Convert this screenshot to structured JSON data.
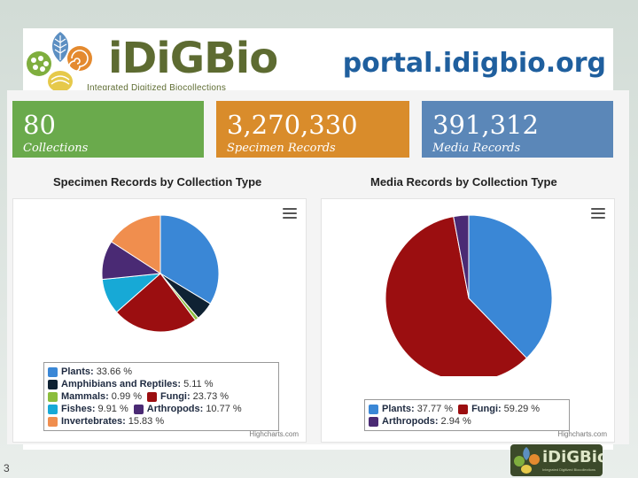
{
  "header": {
    "logo_text": "iDiGBio",
    "logo_subtitle": "Integrated Digitized Biocollections",
    "url": "portal.idigbio.org"
  },
  "stats": [
    {
      "value": "80",
      "label": "Collections",
      "color": "#6aaa4c"
    },
    {
      "value": "3,270,330",
      "label": "Specimen Records",
      "color": "#d98c2b"
    },
    {
      "value": "391,312",
      "label": "Media Records",
      "color": "#5b87b8"
    }
  ],
  "specimen_chart": {
    "title": "Specimen Records by Collection Type",
    "credit": "Highcharts.com",
    "legend_rows": [
      [
        {
          "label": "Plants:",
          "value": "33.66 %",
          "color": "#3a87d6"
        }
      ],
      [
        {
          "label": "Amphibians and Reptiles:",
          "value": "5.11 %",
          "color": "#0f2233"
        }
      ],
      [
        {
          "label": "Mammals:",
          "value": "0.99 %",
          "color": "#8bbd3c"
        },
        {
          "label": "Fungi:",
          "value": "23.73 %",
          "color": "#9b0e10"
        }
      ],
      [
        {
          "label": "Fishes:",
          "value": "9.91 %",
          "color": "#17a9d6"
        },
        {
          "label": "Arthropods:",
          "value": "10.77 %",
          "color": "#4a2a74"
        }
      ],
      [
        {
          "label": "Invertebrates:",
          "value": "15.83 %",
          "color": "#f08e4e"
        }
      ]
    ]
  },
  "media_chart": {
    "title": "Media Records by Collection Type",
    "credit": "Highcharts.com",
    "legend_rows": [
      [
        {
          "label": "Plants:",
          "value": "37.77 %",
          "color": "#3a87d6"
        },
        {
          "label": "Fungi:",
          "value": "59.29 %",
          "color": "#9b0e10"
        }
      ],
      [
        {
          "label": "Arthropods:",
          "value": "2.94 %",
          "color": "#4a2a74"
        }
      ]
    ]
  },
  "chart_data": [
    {
      "type": "pie",
      "title": "Specimen Records by Collection Type",
      "categories": [
        "Plants",
        "Amphibians and Reptiles",
        "Mammals",
        "Fungi",
        "Fishes",
        "Arthropods",
        "Invertebrates"
      ],
      "values": [
        33.66,
        5.11,
        0.99,
        23.73,
        9.91,
        10.77,
        15.83
      ],
      "colors": [
        "#3a87d6",
        "#0f2233",
        "#8bbd3c",
        "#9b0e10",
        "#17a9d6",
        "#4a2a74",
        "#f08e4e"
      ],
      "legend": "bottom"
    },
    {
      "type": "pie",
      "title": "Media Records by Collection Type",
      "categories": [
        "Plants",
        "Fungi",
        "Arthropods"
      ],
      "values": [
        37.77,
        59.29,
        2.94
      ],
      "colors": [
        "#3a87d6",
        "#9b0e10",
        "#4a2a74"
      ],
      "legend": "bottom"
    }
  ],
  "footer": {
    "slide_number": "3",
    "mini_logo_text": "iDiGBio",
    "mini_logo_subtitle": "Integrated Digitized Biocollections"
  }
}
